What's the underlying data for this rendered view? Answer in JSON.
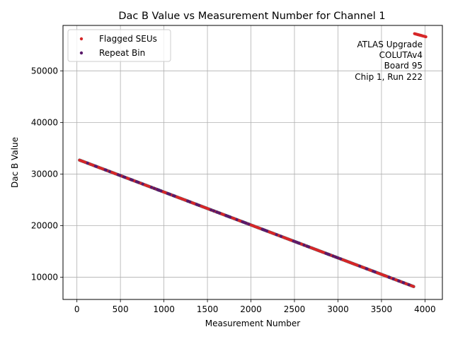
{
  "chart_data": {
    "type": "scatter",
    "title": "Dac B Value vs Measurement Number for Channel 1",
    "xlabel": "Measurement Number",
    "ylabel": "Dac B Value",
    "xlim": [
      -160,
      4200
    ],
    "ylim": [
      5700,
      58800
    ],
    "xticks": [
      0,
      500,
      1000,
      1500,
      2000,
      2500,
      3000,
      3500,
      4000
    ],
    "yticks": [
      10000,
      20000,
      30000,
      40000,
      50000
    ],
    "grid": true,
    "legend_placement": "top-left",
    "annotation": [
      "ATLAS Upgrade",
      "COLUTAv4",
      "Board 95",
      "Chip 1, Run 222"
    ],
    "annotation_placement": "top-right",
    "main_series": {
      "color": "#17becf",
      "start": [
        30,
        32700
      ],
      "end": [
        3870,
        8200
      ],
      "count": 420
    },
    "series": [
      {
        "name": "Flagged SEUs",
        "color": "#d62728",
        "segments": [
          {
            "start": [
              30,
              32700
            ],
            "end": [
              3870,
              8200
            ],
            "count": 380
          },
          {
            "start": [
              3880,
              57200
            ],
            "end": [
              4010,
              56600
            ],
            "count": 18
          }
        ]
      },
      {
        "name": "Repeat Bin",
        "color": "#5a1a6a",
        "segments": [
          {
            "start": [
              30,
              32700
            ],
            "end": [
              3870,
              8200
            ],
            "count": 90
          }
        ]
      }
    ]
  }
}
